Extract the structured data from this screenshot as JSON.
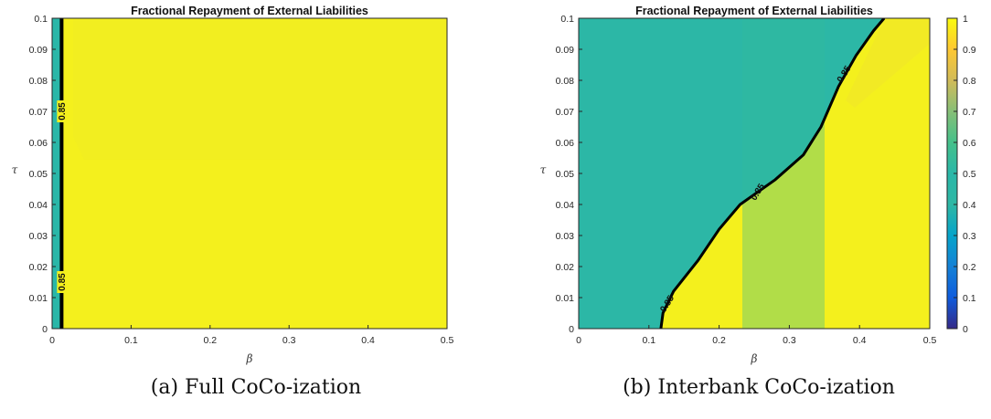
{
  "chart_data": [
    {
      "type": "heatmap",
      "subtype": "filled-contour",
      "title": "Fractional Repayment of External Liabilities",
      "xlabel": "β",
      "ylabel": "τ",
      "xlim": [
        0,
        0.5
      ],
      "ylim": [
        0,
        0.1
      ],
      "x_ticks": [
        "0",
        "0.1",
        "0.2",
        "0.3",
        "0.4",
        "0.5"
      ],
      "y_ticks": [
        "0",
        "0.01",
        "0.02",
        "0.03",
        "0.04",
        "0.05",
        "0.06",
        "0.07",
        "0.08",
        "0.09",
        "0.1"
      ],
      "grid": false,
      "regions": [
        {
          "x_range": [
            0,
            0.012
          ],
          "value": 0.55
        },
        {
          "x_range": [
            0.012,
            0.5
          ],
          "value": 0.97
        }
      ],
      "contour_level": 0.85,
      "contour_labels": [
        "0.85",
        "0.85"
      ],
      "contour_line": [
        [
          0.012,
          0.0
        ],
        [
          0.012,
          0.1
        ]
      ],
      "caption": "(a) Full CoCo-ization"
    },
    {
      "type": "heatmap",
      "subtype": "filled-contour",
      "title": "Fractional Repayment of External Liabilities",
      "xlabel": "β",
      "ylabel": "τ",
      "xlim": [
        0,
        0.5
      ],
      "ylim": [
        0,
        0.1
      ],
      "x_ticks": [
        "0",
        "0.1",
        "0.2",
        "0.3",
        "0.4",
        "0.5"
      ],
      "y_ticks": [
        "0",
        "0.01",
        "0.02",
        "0.03",
        "0.04",
        "0.05",
        "0.06",
        "0.07",
        "0.08",
        "0.09",
        "0.1"
      ],
      "grid": false,
      "regions": [
        {
          "description": "left of boundary",
          "value": 0.58
        },
        {
          "description": "right of boundary",
          "value": 0.97
        }
      ],
      "contour_level": 0.85,
      "contour_labels": [
        "0.85",
        "0.85",
        "0.85"
      ],
      "contour_line": [
        [
          0.117,
          0.0
        ],
        [
          0.12,
          0.005
        ],
        [
          0.135,
          0.012
        ],
        [
          0.17,
          0.022
        ],
        [
          0.2,
          0.032
        ],
        [
          0.23,
          0.04
        ],
        [
          0.28,
          0.048
        ],
        [
          0.32,
          0.056
        ],
        [
          0.345,
          0.065
        ],
        [
          0.37,
          0.078
        ],
        [
          0.395,
          0.088
        ],
        [
          0.42,
          0.096
        ],
        [
          0.435,
          0.1
        ]
      ],
      "caption": "(b) Interbank CoCo-ization"
    }
  ],
  "colorbar": {
    "colormap": "parula",
    "range": [
      0,
      1
    ],
    "ticks": [
      "0",
      "0.1",
      "0.2",
      "0.3",
      "0.4",
      "0.5",
      "0.6",
      "0.7",
      "0.8",
      "0.9",
      "1"
    ]
  },
  "colors": {
    "teal": "#2ab7a8",
    "yellow": "#f4f01d",
    "axis": "#262626"
  }
}
